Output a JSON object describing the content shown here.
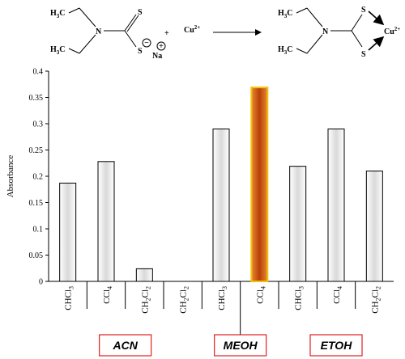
{
  "scheme": {
    "reactant_methyl_top": "H3C",
    "reactant_methyl_bottom": "H3C",
    "reactant_n": "N",
    "reactant_s_top": "S",
    "reactant_s_bottom": "S",
    "minus_sign": "−",
    "counter_ion": "Na",
    "plus_sign": "+",
    "loose_plus": "+",
    "metal_ion": "Cu2+",
    "product_methyl_top": "H3C",
    "product_methyl_bottom": "H3C",
    "product_n": "N",
    "product_s_top": "S",
    "product_s_bottom": "S",
    "product_metal": "Cu2+"
  },
  "chart_data": {
    "type": "bar",
    "ylabel": "Absorbance",
    "ylim": [
      0,
      0.4
    ],
    "yticks": [
      "0",
      "0.05",
      "0.1",
      "0.15",
      "0.2",
      "0.25",
      "0.3",
      "0.35",
      "0.4"
    ],
    "categories": [
      {
        "pre": "CHCl",
        "sub": "3",
        "mid": "",
        "sub2": ""
      },
      {
        "pre": "CCl",
        "sub": "4",
        "mid": "",
        "sub2": ""
      },
      {
        "pre": "CH",
        "sub": "2",
        "mid": "Cl",
        "sub2": "2"
      },
      {
        "pre": "CH",
        "sub": "2",
        "mid": "Cl",
        "sub2": "2"
      },
      {
        "pre": "CHCl",
        "sub": "3",
        "mid": "",
        "sub2": ""
      },
      {
        "pre": "CCl",
        "sub": "4",
        "mid": "",
        "sub2": ""
      },
      {
        "pre": "CHCl",
        "sub": "3",
        "mid": "",
        "sub2": ""
      },
      {
        "pre": "CCl",
        "sub": "4",
        "mid": "",
        "sub2": ""
      },
      {
        "pre": "CH",
        "sub": "2",
        "mid": "Cl",
        "sub2": "2"
      }
    ],
    "values": [
      0.187,
      0.228,
      0.024,
      0,
      0.29,
      0.369,
      0.219,
      0.29,
      0.21
    ],
    "highlight_index": 5,
    "highlight_color": "#e0580c",
    "bar_color": "#ffffff",
    "groups": [
      {
        "label": "ACN",
        "start": 0,
        "end": 3
      },
      {
        "label": "MEOH",
        "start": 4,
        "end": 5
      },
      {
        "label": "ETOH",
        "start": 6,
        "end": 8
      }
    ],
    "group_box_color": "#e02020",
    "grid": false
  }
}
